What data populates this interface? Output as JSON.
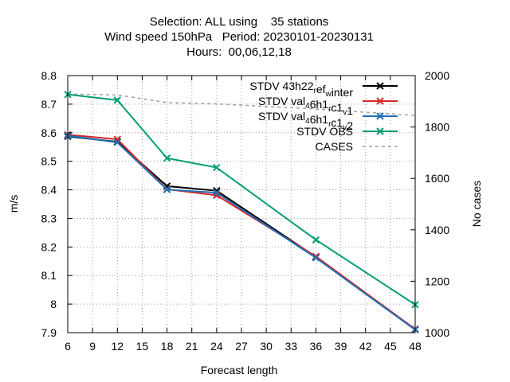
{
  "chart_data": {
    "type": "line",
    "title_lines": [
      "Selection: ALL using    35 stations",
      "Wind speed 150hPa   Period: 20230101-20230131",
      "Hours:  00,06,12,18"
    ],
    "xlabel": "Forecast length",
    "ylabel": "m/s",
    "y2label": "No cases",
    "xlim": [
      6,
      48
    ],
    "ylim": [
      7.9,
      8.8
    ],
    "y2lim": [
      1000,
      2000
    ],
    "xticks": [
      "6",
      "9",
      "12",
      "15",
      "18",
      "21",
      "24",
      "27",
      "30",
      "33",
      "36",
      "39",
      "42",
      "45",
      "48"
    ],
    "yticks": [
      "7.9",
      "8",
      "8.1",
      "8.2",
      "8.3",
      "8.4",
      "8.5",
      "8.6",
      "8.7",
      "8.8"
    ],
    "y2ticks": [
      "1000",
      "1200",
      "1400",
      "1600",
      "1800",
      "2000"
    ],
    "grid": true,
    "legend_position": "top-right",
    "x": [
      6,
      12,
      18,
      24,
      36,
      48
    ],
    "series": [
      {
        "name": "STDV 43h22_ref_winter",
        "legend_parts": [
          [
            "STDV 43h22",
            ""
          ],
          [
            "r",
            "sub"
          ],
          [
            "ef",
            ""
          ],
          [
            "w",
            "sub"
          ],
          [
            "inter",
            ""
          ]
        ],
        "color": "#000000",
        "marker": "x",
        "axis": "y",
        "values": [
          8.587,
          8.568,
          8.413,
          8.397,
          8.165,
          7.912
        ]
      },
      {
        "name": "STDV val_46h1_rc1_v1",
        "legend_parts": [
          [
            "STDV val",
            ""
          ],
          [
            "4",
            "sub"
          ],
          [
            "6h1",
            ""
          ],
          [
            "r",
            "sub"
          ],
          [
            "c1",
            ""
          ],
          [
            "v",
            "sub"
          ],
          [
            "1",
            ""
          ]
        ],
        "color": "#d62728",
        "marker": "x",
        "axis": "y",
        "values": [
          8.593,
          8.577,
          8.402,
          8.381,
          8.167,
          7.912
        ]
      },
      {
        "name": "STDV val_46h1_rc1_v2",
        "legend_parts": [
          [
            "STDV val",
            ""
          ],
          [
            "4",
            "sub"
          ],
          [
            "6h1",
            ""
          ],
          [
            "r",
            "sub"
          ],
          [
            "c1",
            ""
          ],
          [
            "v",
            "sub"
          ],
          [
            "2",
            ""
          ]
        ],
        "color": "#1f6fb5",
        "marker": "x",
        "axis": "y",
        "values": [
          8.59,
          8.566,
          8.401,
          8.39,
          8.162,
          7.91
        ]
      },
      {
        "name": "STDV OBS",
        "legend_parts": [
          [
            "STDV OBS",
            ""
          ]
        ],
        "color": "#009e73",
        "marker": "x",
        "axis": "y",
        "values": [
          8.734,
          8.714,
          8.511,
          8.478,
          8.225,
          7.998
        ]
      },
      {
        "name": "CASES",
        "legend_parts": [
          [
            "CASES",
            ""
          ]
        ],
        "color": "#a0a0a0",
        "marker": "none",
        "dashed": true,
        "axis": "y2",
        "values": [
          1928,
          1925,
          1895,
          1890,
          1870,
          1845
        ]
      }
    ]
  }
}
